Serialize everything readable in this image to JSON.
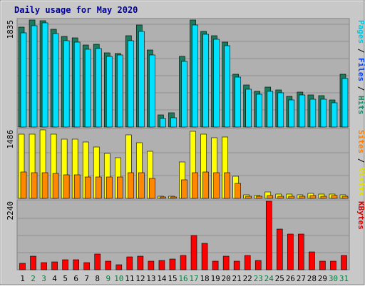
{
  "chart_data": {
    "type": "bar",
    "title": "Daily usage for May 2020",
    "categories": [
      "1",
      "2",
      "3",
      "4",
      "5",
      "6",
      "7",
      "8",
      "9",
      "10",
      "11",
      "12",
      "13",
      "14",
      "15",
      "16",
      "17",
      "18",
      "19",
      "20",
      "21",
      "22",
      "23",
      "24",
      "25",
      "26",
      "27",
      "28",
      "29",
      "30",
      "31"
    ],
    "weekend_days": [
      "2",
      "3",
      "9",
      "10",
      "16",
      "17",
      "23",
      "24",
      "30",
      "31"
    ],
    "panels": [
      {
        "id": "hits-panel",
        "ytick": "1835",
        "ymax": 1835,
        "right_label": [
          {
            "text": "Pages",
            "color": "#00c8e0"
          },
          {
            "text": " / ",
            "color": "#000000"
          },
          {
            "text": "Files",
            "color": "#0040ff"
          },
          {
            "text": " / ",
            "color": "#000000"
          },
          {
            "text": "Hits",
            "color": "#1a8c6a"
          }
        ],
        "series": [
          {
            "color": "#1b7b5e",
            "values": [
              1710,
              1835,
              1820,
              1680,
              1550,
              1530,
              1410,
              1420,
              1270,
              1260,
              1570,
              1750,
              1320,
              210,
              240,
              1210,
              1830,
              1640,
              1570,
              1460,
              910,
              720,
              610,
              680,
              640,
              520,
              600,
              550,
              540,
              470,
              910
            ]
          },
          {
            "color": "#00e0ff",
            "values": [
              1610,
              1740,
              1790,
              1600,
              1480,
              1460,
              1330,
              1350,
              1210,
              1230,
              1480,
              1640,
              1240,
              150,
              160,
              1120,
              1750,
              1590,
              1500,
              1390,
              860,
              650,
              560,
              610,
              590,
              470,
              550,
              480,
              480,
              410,
              830
            ]
          }
        ]
      },
      {
        "id": "visits-panel",
        "ytick": "1486",
        "ymax": 1486,
        "right_label": [
          {
            "text": "Sites",
            "color": "#ff8000"
          },
          {
            "text": " / ",
            "color": "#000000"
          },
          {
            "text": "Visits",
            "color": "#e0e000"
          }
        ],
        "series": [
          {
            "color": "#ffff00",
            "values": [
              1400,
              1400,
              1486,
              1400,
              1290,
              1290,
              1220,
              1110,
              980,
              880,
              1380,
              1210,
              1020,
              50,
              40,
              790,
              1460,
              1400,
              1310,
              1330,
              480,
              70,
              60,
              140,
              100,
              90,
              80,
              110,
              90,
              90,
              70
            ]
          },
          {
            "color": "#ff8800",
            "values": [
              570,
              560,
              560,
              540,
              510,
              510,
              470,
              470,
              460,
              470,
              550,
              550,
              430,
              30,
              25,
              400,
              560,
              570,
              550,
              550,
              330,
              40,
              40,
              60,
              50,
              50,
              50,
              60,
              50,
              55,
              45
            ]
          }
        ]
      },
      {
        "id": "kbytes-panel",
        "ytick": "2240",
        "ymax": 2240,
        "right_label": [
          {
            "text": "KBytes",
            "color": "#e00000"
          }
        ],
        "series": [
          {
            "color": "#ff0000",
            "values": [
              220,
              440,
              240,
              250,
              320,
              320,
              230,
              510,
              290,
              170,
              410,
              450,
              270,
              300,
              360,
              460,
              1110,
              870,
              290,
              440,
              280,
              470,
              310,
              2240,
              1330,
              1170,
              1170,
              580,
              280,
              290,
              460
            ]
          }
        ]
      }
    ]
  }
}
